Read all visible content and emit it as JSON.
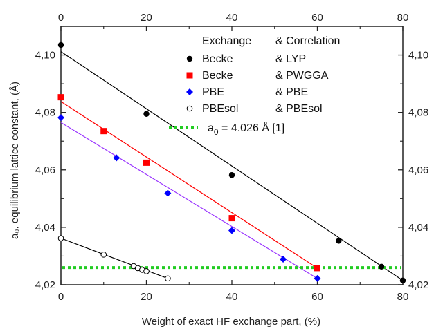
{
  "chart_data": {
    "type": "scatter",
    "xlabel": "Weight of exact HF exchange part, (%)",
    "ylabel": "a₀, equilibrium lattice constant, (Å)",
    "xlim": [
      0,
      80
    ],
    "ylim": [
      4.02,
      4.11
    ],
    "x_ticks": [
      "0",
      "20",
      "40",
      "60",
      "80"
    ],
    "y_ticks": [
      "4,02",
      "4,04",
      "4,06",
      "4,08",
      "4,10"
    ],
    "x_tick_values": [
      0,
      20,
      40,
      60,
      80
    ],
    "y_tick_values": [
      4.02,
      4.04,
      4.06,
      4.08,
      4.1
    ],
    "grid": false,
    "legend_position": "top-right",
    "legend_header": {
      "col1": "Exchange",
      "col2": "& Correlation"
    },
    "series": [
      {
        "name": "Becke",
        "correlation": "& LYP",
        "color": "#000000",
        "marker": "circle-filled",
        "x": [
          0,
          20,
          40,
          65,
          75,
          80
        ],
        "y": [
          4.1035,
          4.0795,
          4.0582,
          4.0353,
          4.0263,
          4.0215
        ],
        "fit": {
          "x": [
            0,
            80
          ],
          "y": [
            4.1012,
            4.0215
          ]
        }
      },
      {
        "name": "Becke",
        "correlation": "& PWGGA",
        "color": "#ff0000",
        "marker": "square-filled",
        "x": [
          0,
          10,
          20,
          40,
          60
        ],
        "y": [
          4.0853,
          4.0735,
          4.0625,
          4.0432,
          4.0258
        ],
        "fit": {
          "x": [
            0,
            60
          ],
          "y": [
            4.0838,
            4.0258
          ]
        }
      },
      {
        "name": "PBE",
        "correlation": "& PBE",
        "color": "#0000ff",
        "line_color": "#9933ff",
        "marker": "diamond-filled",
        "x": [
          0,
          13,
          25,
          40,
          52,
          60
        ],
        "y": [
          4.0782,
          4.0642,
          4.0519,
          4.0389,
          4.0289,
          4.0222
        ],
        "fit": {
          "x": [
            0,
            60
          ],
          "y": [
            4.0765,
            4.0222
          ]
        }
      },
      {
        "name": "PBEsol",
        "correlation": "& PBEsol",
        "color": "#000000",
        "marker": "circle-open",
        "x": [
          0,
          10,
          17,
          18,
          19,
          20,
          25
        ],
        "y": [
          4.0362,
          4.0305,
          4.0265,
          4.0258,
          4.0252,
          4.0247,
          4.0222
        ],
        "fit": {
          "x": [
            0,
            25
          ],
          "y": [
            4.0362,
            4.0222
          ]
        }
      }
    ],
    "reference": {
      "label": "a₀ = 4.026 Å [1]",
      "label_main": "a",
      "label_sub": "0",
      "label_rest": " = 4.026 Å [1]",
      "value": 4.026,
      "color": "#22cc22"
    }
  }
}
